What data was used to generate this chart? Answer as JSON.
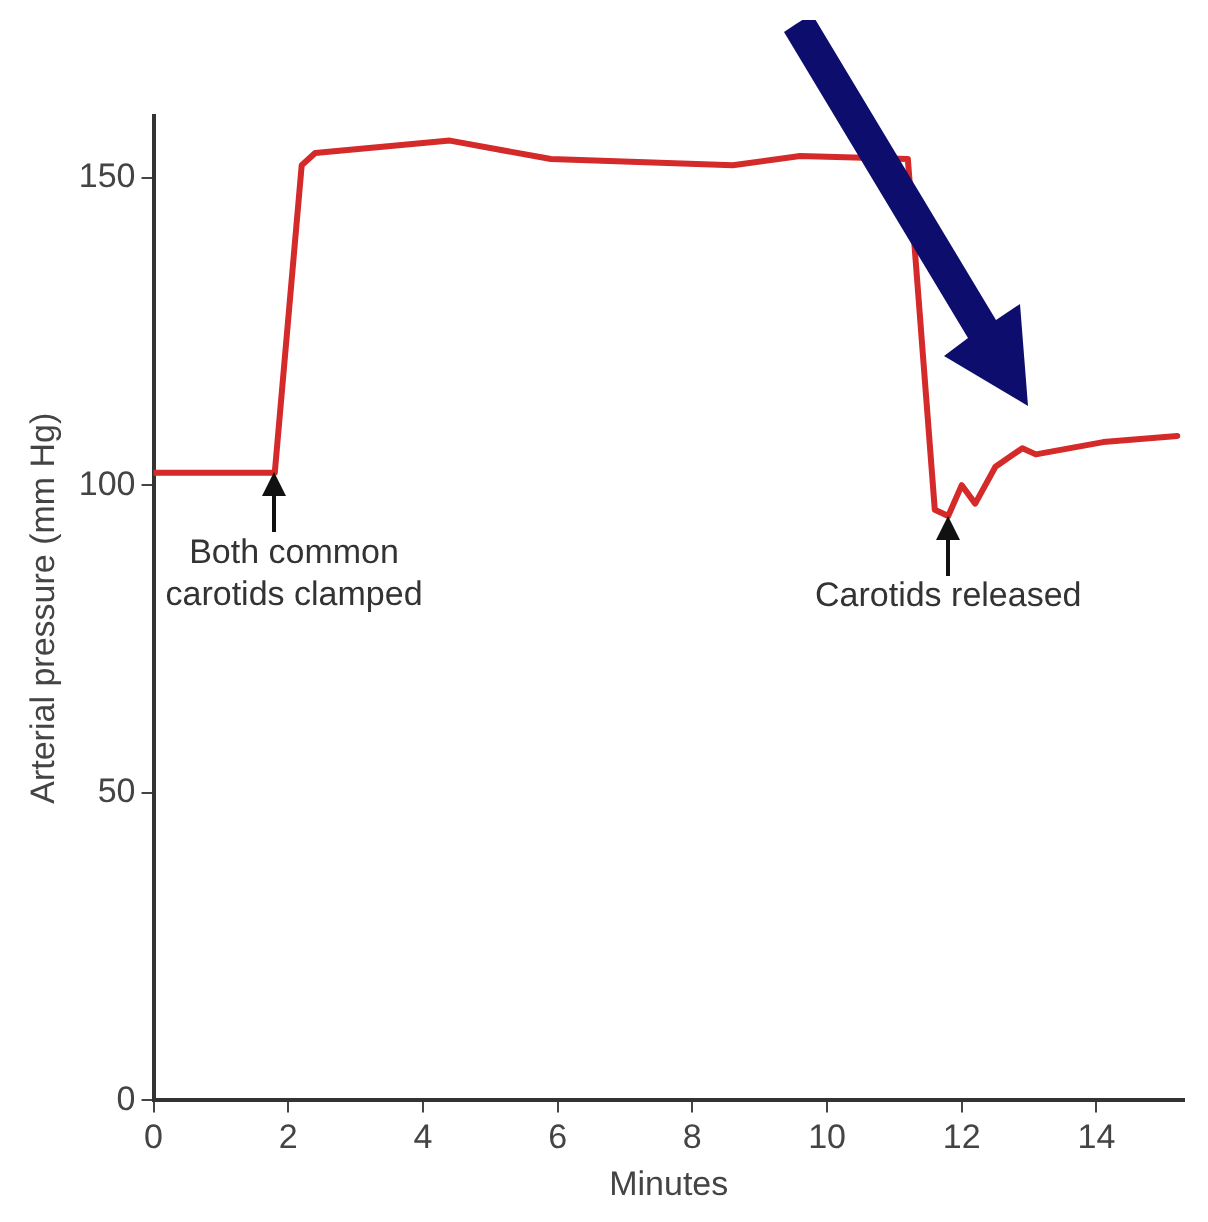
{
  "chart_data": {
    "type": "line",
    "xlabel": "Minutes",
    "ylabel": "Arterial pressure (mm Hg)",
    "xlim": [
      0,
      15.3
    ],
    "xticks": [
      0,
      2,
      4,
      6,
      8,
      10,
      12,
      14
    ],
    "ylim": [
      0,
      160
    ],
    "yticks": [
      0,
      50,
      100,
      150
    ],
    "grid": false,
    "legend": false,
    "marker": "none",
    "line_style": "solid",
    "series": [
      {
        "color": "#d42a2a",
        "x": [
          0,
          1.8,
          2.2,
          2.4,
          4.4,
          5.9,
          8.6,
          9.6,
          11.2,
          11.6,
          11.8,
          12.0,
          12.2,
          12.5,
          12.9,
          13.1,
          14.1,
          15.2
        ],
        "values": [
          102,
          102,
          152,
          154,
          156,
          153,
          152,
          153.5,
          153,
          96,
          95,
          100,
          97,
          103,
          106,
          105,
          107,
          108
        ]
      }
    ],
    "annotations": [
      {
        "text": "Both common carotids clamped",
        "x": 1.8,
        "y": 102
      },
      {
        "text": "Carotids released",
        "x": 11.8,
        "y": 95
      }
    ]
  }
}
